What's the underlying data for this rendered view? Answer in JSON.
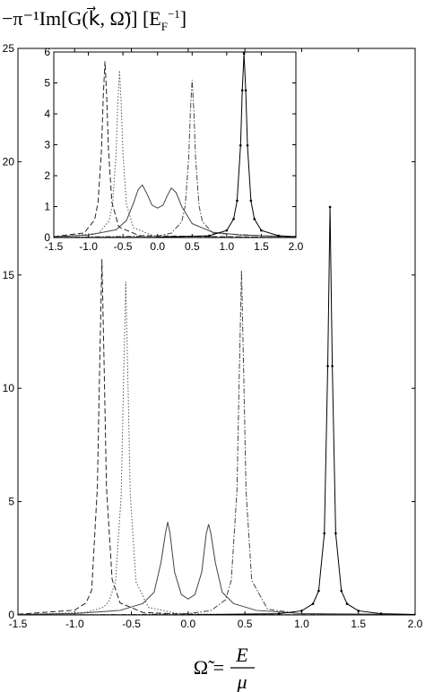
{
  "chart_data": [
    {
      "type": "line",
      "ylabel": "−π⁻¹Im[G(k⃗, Ω̃)] [E",
      "ylabel_sub": "F",
      "ylabel_sup": "−1",
      "ylabel_end": "]",
      "xlabel": "Ω̃ =",
      "xlabel_num": "E",
      "xlabel_den": "μ",
      "xlim": [
        -1.5,
        2.0
      ],
      "xticks": [
        -1.5,
        {
          "value": -1.0,
          "label": "-1.0"
        },
        -0.5,
        {
          "value": 0.0,
          "label": "0.0"
        },
        0.5,
        {
          "value": 1.0,
          "label": "1.0"
        },
        1.5,
        {
          "value": 2.0,
          "label": "2.0"
        }
      ],
      "ylim": [
        0,
        25
      ],
      "yticks": [
        0,
        5,
        10,
        15,
        20,
        25
      ],
      "grid": false,
      "series": [
        {
          "style": "dashed",
          "color": "#222222",
          "x": [
            -1.5,
            -1.0,
            -0.9,
            -0.85,
            -0.8,
            -0.78,
            -0.76,
            -0.74,
            -0.72,
            -0.67,
            -0.6,
            -0.4,
            0.0,
            1.0,
            2.0
          ],
          "values": [
            0.03,
            0.21,
            0.53,
            1.09,
            5.65,
            10.9,
            15.7,
            10.9,
            5.65,
            1.57,
            0.53,
            0.11,
            0.02,
            0.01,
            0.0
          ]
        },
        {
          "style": "dotted",
          "color": "#555555",
          "x": [
            -1.5,
            -0.9,
            -0.75,
            -0.7,
            -0.64,
            -0.59,
            -0.57,
            -0.55,
            -0.53,
            -0.51,
            -0.46,
            -0.35,
            -0.1,
            0.5,
            2.0
          ],
          "values": [
            0.015,
            0.11,
            0.33,
            0.57,
            1.47,
            5.29,
            10.2,
            14.7,
            10.2,
            5.29,
            1.47,
            0.33,
            0.065,
            0.012,
            0.002
          ]
        },
        {
          "style": "solid",
          "color": "#444444",
          "x": [
            -1.5,
            -1.0,
            -0.6,
            -0.4,
            -0.3,
            -0.24,
            -0.2,
            -0.18,
            -0.16,
            -0.12,
            -0.06,
            0.0,
            0.06,
            0.12,
            0.16,
            0.18,
            0.2,
            0.24,
            0.3,
            0.4,
            0.6,
            1.0,
            2.0
          ],
          "values": [
            0.02,
            0.06,
            0.2,
            0.5,
            1.0,
            2.3,
            3.6,
            4.1,
            3.6,
            1.9,
            0.9,
            0.7,
            0.9,
            1.9,
            3.6,
            4.0,
            3.6,
            2.3,
            1.0,
            0.5,
            0.2,
            0.06,
            0.02
          ]
        },
        {
          "style": "dashdot",
          "color": "#444444",
          "x": [
            -1.5,
            -0.5,
            0.0,
            0.2,
            0.33,
            0.38,
            0.43,
            0.45,
            0.47,
            0.49,
            0.51,
            0.56,
            0.7,
            1.0,
            2.0
          ],
          "values": [
            0.0035,
            0.015,
            0.06,
            0.19,
            0.67,
            1.52,
            5.47,
            10.5,
            15.2,
            10.5,
            5.47,
            1.52,
            0.25,
            0.05,
            0.006
          ]
        },
        {
          "style": "solid",
          "color": "#000000",
          "markers": true,
          "x": [
            -1.5,
            0.0,
            0.8,
            1.0,
            1.1,
            1.15,
            1.2,
            1.23,
            1.25,
            1.27,
            1.3,
            1.35,
            1.4,
            1.5,
            1.7,
            2.0
          ],
          "values": [
            0.0015,
            0.007,
            0.055,
            0.18,
            0.49,
            1.06,
            3.6,
            10.98,
            18,
            10.98,
            3.6,
            1.06,
            0.49,
            0.18,
            0.055,
            0.02
          ]
        }
      ]
    },
    {
      "type": "line",
      "xlim": [
        -1.5,
        2.0
      ],
      "xticks": [
        -1.5,
        {
          "value": -1.0,
          "label": "-1.0"
        },
        -0.5,
        {
          "value": 0.0,
          "label": "0.0"
        },
        0.5,
        {
          "value": 1.0,
          "label": "1.0"
        },
        1.5,
        {
          "value": 2.0,
          "label": "2.0"
        }
      ],
      "ylim": [
        0,
        6
      ],
      "yticks": [
        0,
        1,
        2,
        3,
        4,
        5,
        6
      ],
      "grid": false,
      "series": [
        {
          "style": "dashed",
          "color": "#222222",
          "x": [
            -1.5,
            -1.06,
            -0.91,
            -0.86,
            -0.81,
            -0.785,
            -0.76,
            -0.735,
            -0.71,
            -0.66,
            -0.56,
            -0.26,
            2.0
          ],
          "values": [
            0.03,
            0.15,
            0.57,
            1.14,
            2.85,
            4.56,
            5.7,
            4.56,
            2.85,
            1.14,
            0.34,
            0.06,
            0.0
          ]
        },
        {
          "style": "dotted",
          "color": "#555555",
          "x": [
            -1.5,
            -0.85,
            -0.7,
            -0.65,
            -0.6,
            -0.575,
            -0.55,
            -0.525,
            -0.5,
            -0.45,
            -0.35,
            -0.05,
            2.0
          ],
          "values": [
            0.015,
            0.14,
            0.54,
            1.08,
            2.7,
            4.32,
            5.4,
            4.32,
            2.7,
            1.08,
            0.32,
            0.05,
            0.0
          ]
        },
        {
          "style": "solid",
          "color": "#444444",
          "x": [
            -1.5,
            -1.0,
            -0.6,
            -0.45,
            -0.35,
            -0.28,
            -0.22,
            -0.15,
            -0.08,
            0.0,
            0.08,
            0.14,
            0.2,
            0.27,
            0.35,
            0.5,
            0.8,
            1.2,
            2.0
          ],
          "values": [
            0.03,
            0.08,
            0.25,
            0.55,
            1.1,
            1.55,
            1.7,
            1.4,
            1.05,
            0.95,
            1.05,
            1.35,
            1.6,
            1.45,
            1.0,
            0.45,
            0.17,
            0.08,
            0.03
          ]
        },
        {
          "style": "dashdot",
          "color": "#444444",
          "x": [
            -1.5,
            0.0,
            0.2,
            0.35,
            0.4,
            0.45,
            0.475,
            0.5,
            0.525,
            0.55,
            0.6,
            0.65,
            0.8,
            2.0
          ],
          "values": [
            0.003,
            0.05,
            0.14,
            0.51,
            1.02,
            2.55,
            4.08,
            5.1,
            4.08,
            2.55,
            1.02,
            0.51,
            0.14,
            0.006
          ]
        },
        {
          "style": "solid",
          "color": "#000000",
          "markers": true,
          "x": [
            -1.5,
            0.0,
            0.75,
            1.0,
            1.1,
            1.15,
            1.2,
            1.225,
            1.25,
            1.275,
            1.3,
            1.35,
            1.4,
            1.5,
            1.75,
            2.0
          ],
          "values": [
            0.002,
            0.0095,
            0.059,
            0.23,
            0.6,
            1.19,
            2.98,
            4.76,
            5.95,
            4.76,
            2.98,
            1.19,
            0.6,
            0.23,
            0.059,
            0.026
          ]
        }
      ]
    }
  ]
}
